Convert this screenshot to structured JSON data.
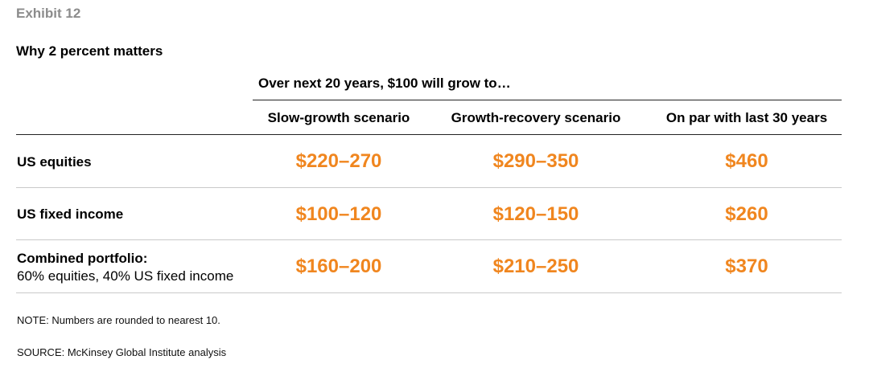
{
  "exhibit_label": "Exhibit 12",
  "title": "Why 2 percent matters",
  "group_header": "Over next 20 years, $100 will grow to…",
  "columns": [
    "Slow-growth scenario",
    "Growth-recovery scenario",
    "On par with last 30 years"
  ],
  "rows": [
    {
      "label": "US equities",
      "sublabel": "",
      "values": [
        "$220–270",
        "$290–350",
        "$460"
      ]
    },
    {
      "label": "US fixed income",
      "sublabel": "",
      "values": [
        "$100–120",
        "$120–150",
        "$260"
      ]
    },
    {
      "label": "Combined portfolio:",
      "sublabel": "60% equities, 40% US fixed income",
      "values": [
        "$160–200",
        "$210–250",
        "$370"
      ]
    }
  ],
  "note": "NOTE: Numbers are rounded to nearest 10.",
  "source": "SOURCE:  McKinsey Global Institute analysis",
  "colors": {
    "value_orange": "#f0861f",
    "exhibit_gray": "#8c8c8c",
    "rule_light": "#c9c9c9"
  }
}
